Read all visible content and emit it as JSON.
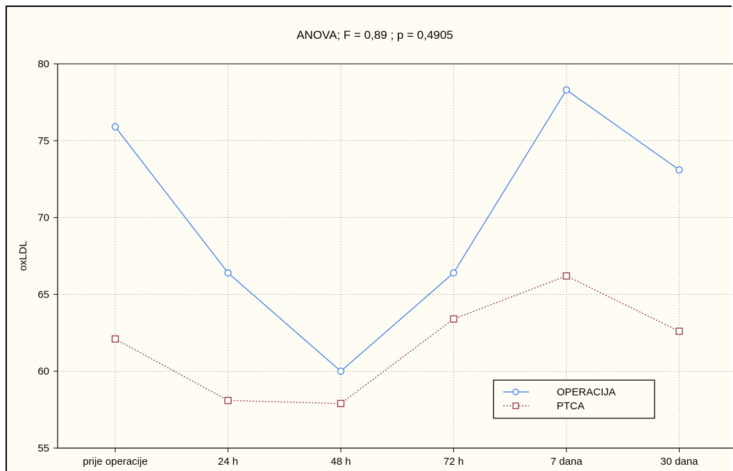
{
  "chart_data": {
    "type": "line",
    "title": "ANOVA;  F = 0,89 ;  p = 0,4905",
    "xlabel": "",
    "ylabel": "oxLDL",
    "categories": [
      "prije operacije",
      "24 h",
      "48 h",
      "72 h",
      "7 dana",
      "30 dana"
    ],
    "ylim": [
      55,
      80
    ],
    "yticks": [
      55,
      60,
      65,
      70,
      75,
      80
    ],
    "grid": true,
    "legend_position": "bottom-right",
    "series": [
      {
        "name": "OPERACIJA",
        "values": [
          75.9,
          66.4,
          60.0,
          66.4,
          78.3,
          73.1
        ],
        "color": "#4a86e8",
        "marker": "circle",
        "line_style": "solid"
      },
      {
        "name": "PTCA",
        "values": [
          62.1,
          58.1,
          57.9,
          63.4,
          66.2,
          62.6
        ],
        "color": "#9b3c5a",
        "marker": "square",
        "line_style": "dotted"
      }
    ]
  }
}
